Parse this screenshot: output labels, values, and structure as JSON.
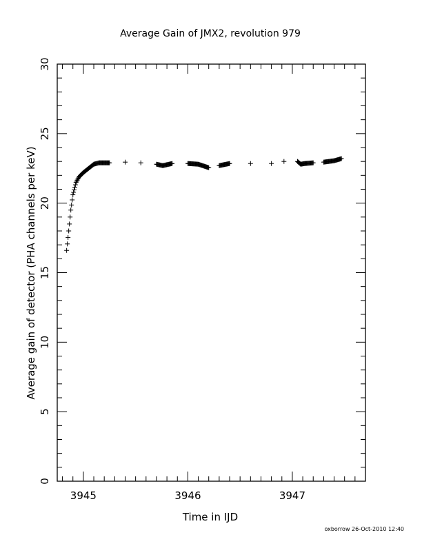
{
  "chart_data": {
    "type": "scatter",
    "title": "Average Gain of JMX2, revolution 979",
    "xlabel": "Time in IJD",
    "ylabel": "Average gain of detector (PHA channels per keV)",
    "xlim": [
      3944.75,
      3947.7
    ],
    "ylim": [
      0,
      30
    ],
    "xticks": [
      3945,
      3946,
      3947
    ],
    "xtick_labels": [
      "3945",
      "3946",
      "3947"
    ],
    "yticks": [
      0,
      5,
      10,
      15,
      20,
      25,
      30
    ],
    "ytick_labels": [
      "0",
      "5",
      "10",
      "15",
      "20",
      "25",
      "30"
    ],
    "x_minor_step": 0.1,
    "y_minor_step": 1,
    "marker": "plus",
    "grid": false,
    "legend": "none",
    "series": [
      {
        "x": [
          3944.84,
          3944.86,
          3944.88,
          3944.9,
          3944.93,
          3944.96,
          3945.0,
          3945.05,
          3945.1,
          3945.15,
          3945.25,
          3945.4,
          3945.55,
          3945.7,
          3945.76,
          3945.85,
          3946.0,
          3946.1,
          3946.2,
          3946.3,
          3946.4,
          3946.6,
          3946.8,
          3946.92,
          3947.05,
          3947.08,
          3947.12,
          3947.2,
          3947.3,
          3947.4,
          3947.47
        ],
        "y": [
          16.6,
          18.0,
          19.5,
          20.6,
          21.5,
          21.9,
          22.2,
          22.5,
          22.8,
          22.9,
          22.9,
          22.95,
          22.9,
          22.8,
          22.7,
          22.85,
          22.85,
          22.8,
          22.55,
          22.7,
          22.85,
          22.85,
          22.85,
          23.0,
          23.0,
          22.8,
          22.85,
          22.9,
          22.95,
          23.05,
          23.2
        ]
      }
    ]
  },
  "footer": {
    "stamp": "oxborrow 26-Oct-2010 12:40"
  }
}
